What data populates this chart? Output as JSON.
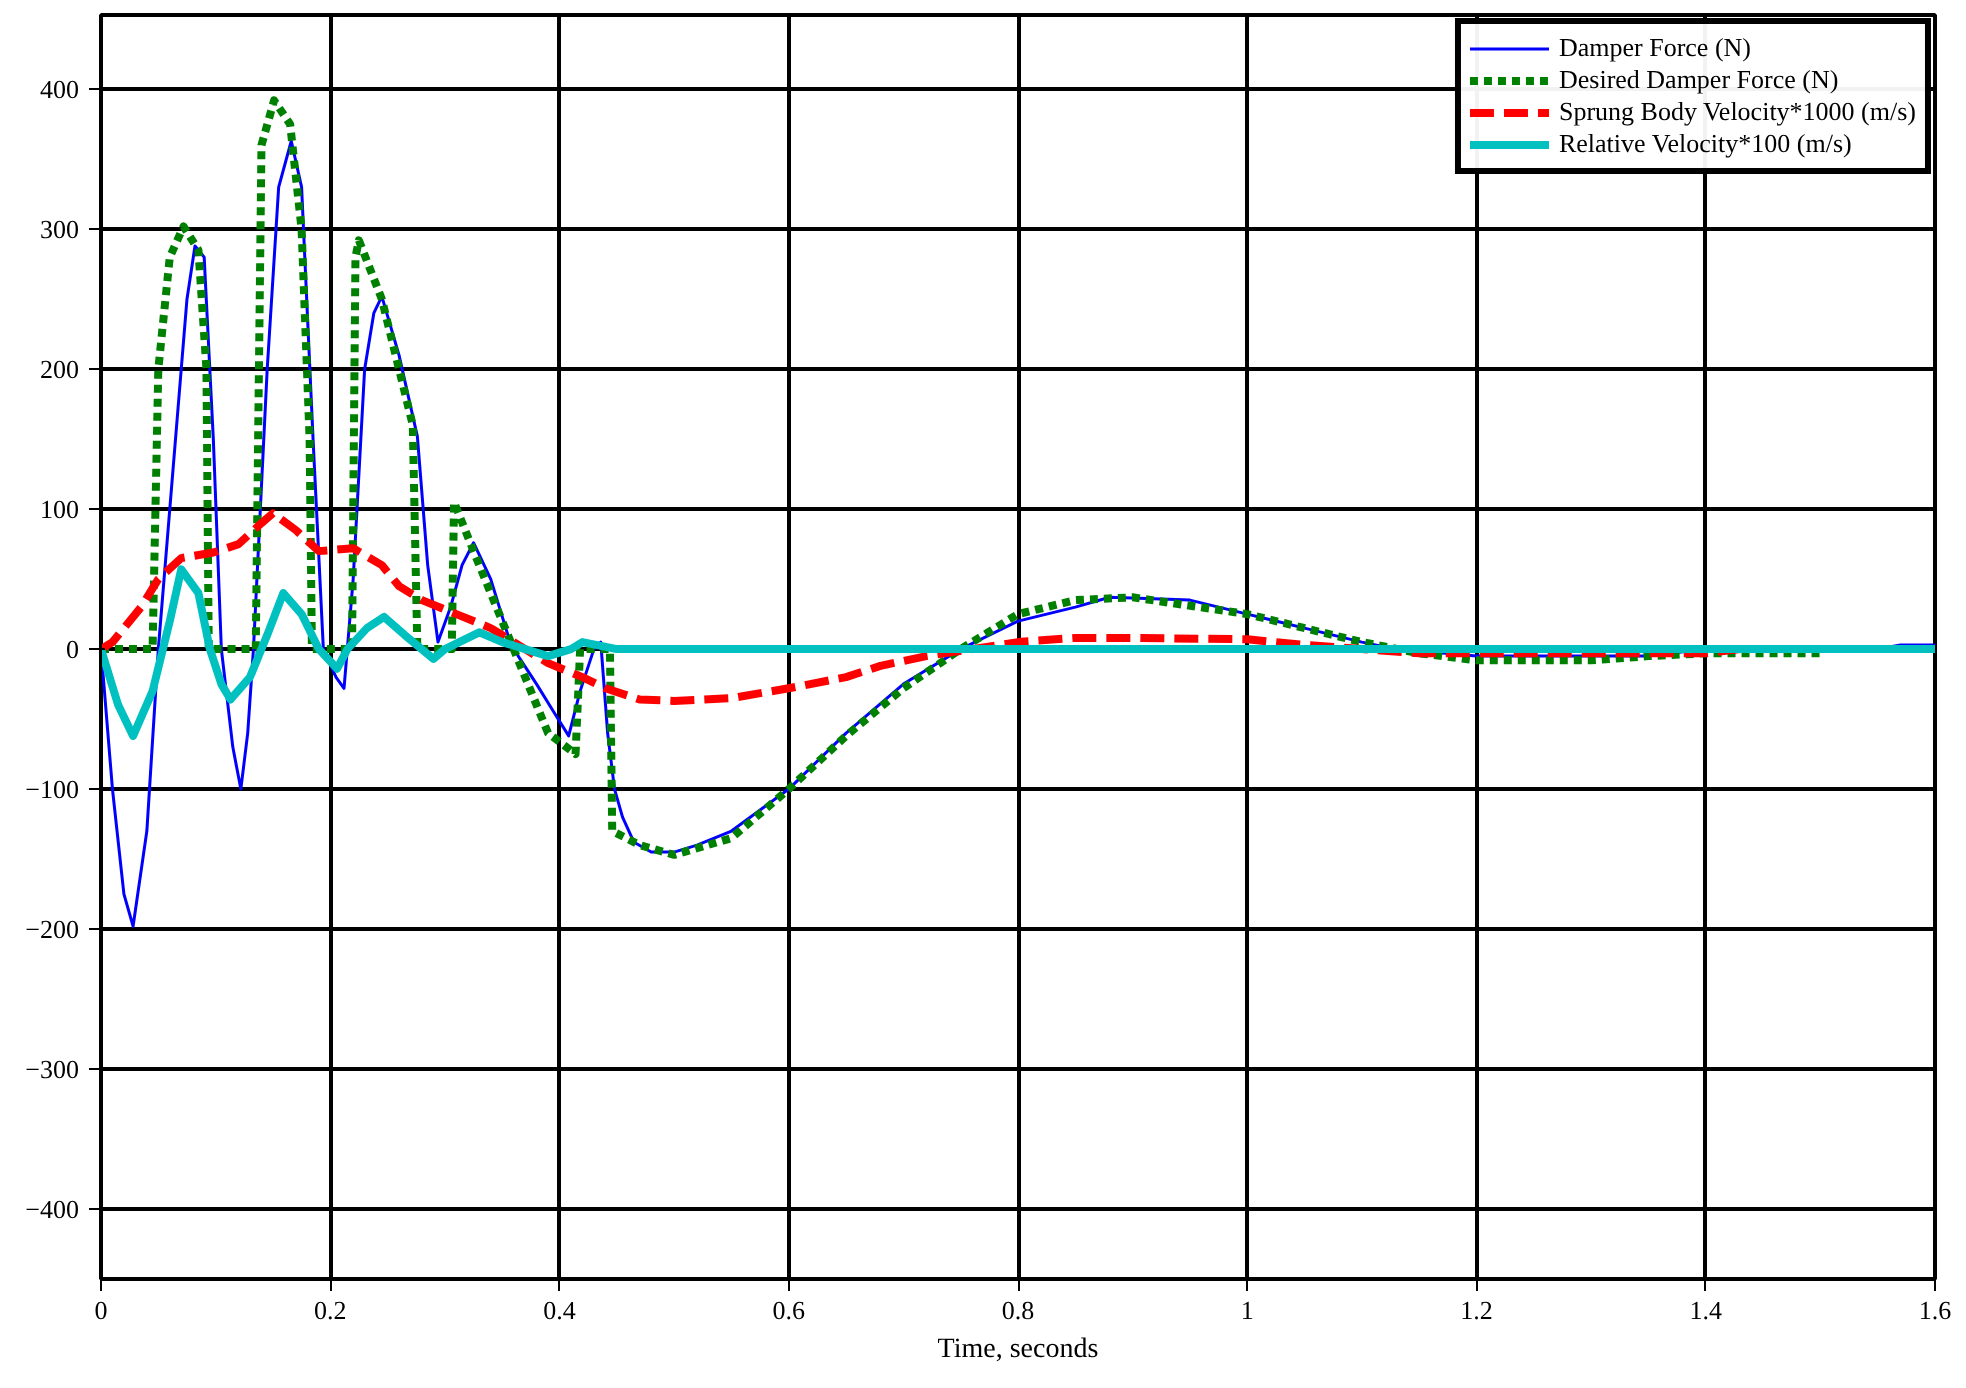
{
  "chart_data": {
    "type": "line",
    "xlabel": "Time, seconds",
    "xlim": [
      0,
      1.6
    ],
    "ylim": [
      -450,
      453
    ],
    "xticks": [
      0,
      0.2,
      0.4,
      0.6,
      0.8,
      {
        "value": 1,
        "label": "1"
      },
      1.2,
      1.4,
      1.6
    ],
    "yticks": [
      -400,
      -300,
      -200,
      -100,
      0,
      100,
      200,
      300,
      400
    ],
    "grid": true,
    "legend": "top right",
    "marker": "none",
    "series": [
      {
        "name": "Damper Force (N)",
        "color": "#0000ff",
        "line_style": "solid",
        "x": [
          0,
          0.01,
          0.02,
          0.028,
          0.04,
          0.05,
          0.065,
          0.075,
          0.082,
          0.09,
          0.098,
          0.105,
          0.115,
          0.122,
          0.128,
          0.133,
          0.145,
          0.155,
          0.166,
          0.175,
          0.185,
          0.194,
          0.205,
          0.212,
          0.22,
          0.23,
          0.238,
          0.245,
          0.26,
          0.276,
          0.285,
          0.294,
          0.305,
          0.315,
          0.325,
          0.34,
          0.355,
          0.364,
          0.38,
          0.395,
          0.408,
          0.418,
          0.43,
          0.436,
          0.442,
          0.448,
          0.455,
          0.465,
          0.48,
          0.5,
          0.52,
          0.55,
          0.6,
          0.65,
          0.7,
          0.75,
          0.8,
          0.85,
          0.88,
          0.95,
          1.0,
          1.05,
          1.1,
          1.13,
          1.2,
          1.35,
          1.4,
          1.55,
          1.57,
          1.6
        ],
        "values": [
          0,
          -100,
          -175,
          -198,
          -130,
          0,
          150,
          250,
          288,
          280,
          150,
          0,
          -70,
          -100,
          -60,
          0,
          200,
          330,
          363,
          330,
          150,
          0,
          -20,
          -28,
          50,
          200,
          240,
          252,
          210,
          152,
          60,
          5,
          30,
          60,
          76,
          50,
          10,
          -5,
          -25,
          -45,
          -62,
          -30,
          0,
          5,
          -60,
          -100,
          -120,
          -138,
          -145,
          -145,
          -140,
          -130,
          -100,
          -60,
          -25,
          0,
          20,
          30,
          37,
          35,
          25,
          15,
          5,
          0,
          -5,
          -5,
          0,
          0,
          3,
          3
        ]
      },
      {
        "name": "Desired Damper Force (N)",
        "color": "#008000",
        "line_style": "dotted",
        "x": [
          0,
          0.045,
          0.05,
          0.06,
          0.072,
          0.085,
          0.092,
          0.094,
          0.135,
          0.14,
          0.151,
          0.165,
          0.175,
          0.182,
          0.184,
          0.219,
          0.222,
          0.225,
          0.245,
          0.26,
          0.272,
          0.276,
          0.306,
          0.308,
          0.325,
          0.35,
          0.37,
          0.39,
          0.414,
          0.418,
          0.444,
          0.446,
          0.47,
          0.5,
          0.55,
          0.6,
          0.65,
          0.7,
          0.75,
          0.8,
          0.85,
          0.9,
          1.0,
          1.1,
          1.15,
          1.2,
          1.3,
          1.35,
          1.4,
          1.5
        ],
        "values": [
          0,
          0,
          200,
          280,
          302,
          285,
          200,
          0,
          0,
          360,
          392,
          375,
          300,
          150,
          0,
          0,
          280,
          292,
          250,
          200,
          160,
          0,
          0,
          105,
          70,
          20,
          -20,
          -60,
          -75,
          0,
          0,
          -130,
          -140,
          -147,
          -135,
          -100,
          -62,
          -28,
          0,
          25,
          35,
          37,
          25,
          5,
          -3,
          -8,
          -8,
          -5,
          -3,
          -3
        ]
      },
      {
        "name": "Sprung Body Velocity*1000 (m/s)",
        "color": "#ff0000",
        "line_style": "dashed",
        "x": [
          0,
          0.01,
          0.035,
          0.05,
          0.07,
          0.098,
          0.12,
          0.14,
          0.15,
          0.17,
          0.19,
          0.22,
          0.245,
          0.26,
          0.28,
          0.31,
          0.34,
          0.37,
          0.39,
          0.42,
          0.44,
          0.47,
          0.5,
          0.55,
          0.6,
          0.65,
          0.68,
          0.72,
          0.76,
          0.8,
          0.85,
          0.9,
          1.0,
          1.05,
          1.1,
          1.15,
          1.4,
          1.43
        ],
        "values": [
          0,
          5,
          30,
          50,
          65,
          69,
          75,
          90,
          97,
          85,
          70,
          72,
          60,
          45,
          35,
          25,
          15,
          0,
          -10,
          -20,
          -28,
          -36,
          -37,
          -35,
          -28,
          -20,
          -12,
          -5,
          0,
          5,
          8,
          8,
          7,
          3,
          0,
          -3,
          -3,
          0
        ]
      },
      {
        "name": "Relative Velocity*100 (m/s)",
        "color": "#00c0c0",
        "line_style": "solid",
        "x": [
          0,
          0.015,
          0.028,
          0.045,
          0.06,
          0.07,
          0.085,
          0.095,
          0.105,
          0.113,
          0.13,
          0.145,
          0.159,
          0.175,
          0.19,
          0.206,
          0.215,
          0.232,
          0.247,
          0.265,
          0.29,
          0.3,
          0.33,
          0.35,
          0.37,
          0.39,
          0.41,
          0.42,
          0.45,
          1.6
        ],
        "values": [
          0,
          -40,
          -62,
          -30,
          20,
          57,
          40,
          0,
          -25,
          -36,
          -20,
          10,
          40,
          25,
          0,
          -14,
          0,
          15,
          23,
          10,
          -7,
          0,
          12,
          5,
          0,
          -5,
          0,
          5,
          0,
          0
        ]
      }
    ]
  }
}
